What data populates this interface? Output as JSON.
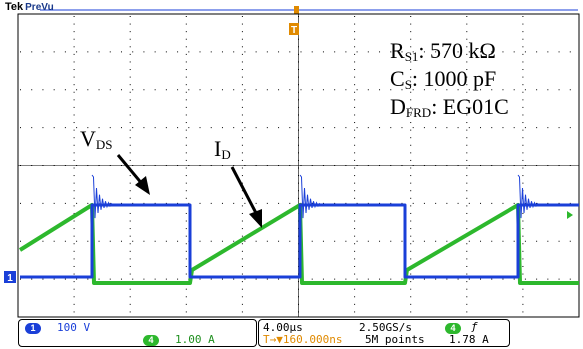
{
  "header": {
    "brand": "Tek",
    "mode": "PreVu"
  },
  "annotations": {
    "rs1": {
      "main": "R",
      "sub": "S1",
      "rest": ": 570 kΩ"
    },
    "cs": {
      "main": "C",
      "sub": "S",
      "rest": ": 1000 pF"
    },
    "dfrd": {
      "main": "D",
      "sub": "FRD",
      "rest": ": EG01C"
    },
    "vds": {
      "main": "V",
      "sub": "DS"
    },
    "id": {
      "main": "I",
      "sub": "D"
    }
  },
  "markers": {
    "trigger": "T",
    "ground": "1"
  },
  "status": {
    "ch1_badge": "1",
    "ch1_scale": "100 V",
    "ch4_badge": "4",
    "ch4_scale": "1.00 A",
    "timebase": "4.00µs",
    "sample_rate": "2.50GS/s",
    "trigger_pos": "T→▼160.000ns",
    "record_length": "5M points",
    "trig_src_badge": "4",
    "trig_slope": "ƒ",
    "trig_level": "1.78 A"
  },
  "colors": {
    "ch1": "#1a3fd8",
    "ch4": "#2db82d",
    "trigger": "#e08a00",
    "grid": "#000000"
  }
}
